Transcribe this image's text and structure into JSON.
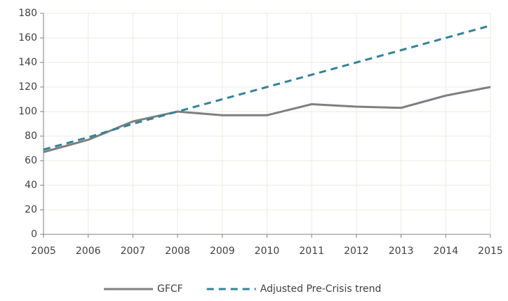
{
  "chart_data": {
    "type": "line",
    "x": [
      2005,
      2006,
      2007,
      2008,
      2009,
      2010,
      2011,
      2012,
      2013,
      2014,
      2015
    ],
    "series": [
      {
        "name": "GFCF",
        "color": "#7f7f7f",
        "dash": false,
        "values": [
          67,
          77,
          92,
          100,
          97,
          97,
          106,
          104,
          103,
          113,
          120
        ]
      },
      {
        "name": "Adjusted Pre-Crisis trend",
        "color": "#31849b",
        "dash": true,
        "values": [
          69,
          79,
          90,
          100,
          110,
          120,
          130,
          140,
          150,
          160,
          170
        ]
      }
    ],
    "xlim": [
      2005,
      2015
    ],
    "xticks": [
      2005,
      2006,
      2007,
      2008,
      2009,
      2010,
      2011,
      2012,
      2013,
      2014,
      2015
    ],
    "ylim": [
      0,
      180
    ],
    "yticks": [
      0,
      20,
      40,
      60,
      80,
      100,
      120,
      140,
      160,
      180
    ],
    "grid": true,
    "legend": "bottom"
  }
}
